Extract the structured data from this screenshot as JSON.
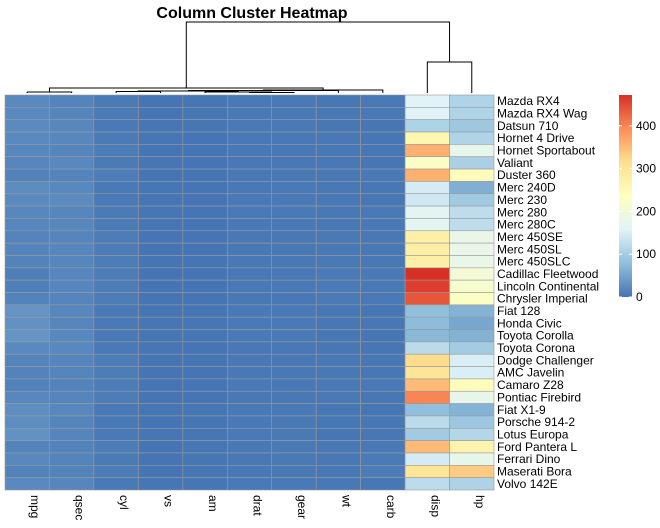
{
  "chart_data": {
    "type": "heatmap",
    "title": "Column Cluster Heatmap",
    "columns": [
      "mpg",
      "qsec",
      "cyl",
      "vs",
      "am",
      "drat",
      "gear",
      "wt",
      "carb",
      "disp",
      "hp"
    ],
    "rows": [
      "Mazda RX4",
      "Mazda RX4 Wag",
      "Datsun 710",
      "Hornet 4 Drive",
      "Hornet Sportabout",
      "Valiant",
      "Duster 360",
      "Merc 240D",
      "Merc 230",
      "Merc 280",
      "Merc 280C",
      "Merc 450SE",
      "Merc 450SL",
      "Merc 450SLC",
      "Cadillac Fleetwood",
      "Lincoln Continental",
      "Chrysler Imperial",
      "Fiat 128",
      "Honda Civic",
      "Toyota Corolla",
      "Toyota Corona",
      "Dodge Challenger",
      "AMC Javelin",
      "Camaro Z28",
      "Pontiac Firebird",
      "Fiat X1-9",
      "Porsche 914-2",
      "Lotus Europa",
      "Ford Pantera L",
      "Ferrari Dino",
      "Maserati Bora",
      "Volvo 142E"
    ],
    "values": [
      [
        21.0,
        16.46,
        6,
        0,
        1,
        3.9,
        4,
        2.62,
        4,
        160.0,
        110
      ],
      [
        21.0,
        17.02,
        6,
        0,
        1,
        3.9,
        4,
        2.875,
        4,
        160.0,
        110
      ],
      [
        22.8,
        18.61,
        4,
        1,
        1,
        3.85,
        4,
        2.32,
        1,
        108.0,
        93
      ],
      [
        21.4,
        19.44,
        6,
        1,
        0,
        3.08,
        3,
        3.215,
        1,
        258.0,
        110
      ],
      [
        18.7,
        17.02,
        8,
        0,
        0,
        3.15,
        3,
        3.44,
        2,
        360.0,
        175
      ],
      [
        18.1,
        20.22,
        6,
        1,
        0,
        2.76,
        3,
        3.46,
        1,
        225.0,
        105
      ],
      [
        14.3,
        15.84,
        8,
        0,
        0,
        3.21,
        3,
        3.57,
        4,
        360.0,
        245
      ],
      [
        24.4,
        20.0,
        4,
        1,
        0,
        3.69,
        4,
        3.19,
        2,
        146.7,
        62
      ],
      [
        22.8,
        22.9,
        4,
        1,
        0,
        3.92,
        4,
        3.15,
        2,
        140.8,
        95
      ],
      [
        19.2,
        18.3,
        6,
        1,
        0,
        3.92,
        4,
        3.44,
        4,
        167.6,
        123
      ],
      [
        17.8,
        18.9,
        6,
        1,
        0,
        3.92,
        4,
        3.44,
        4,
        167.6,
        123
      ],
      [
        16.4,
        17.4,
        8,
        0,
        0,
        3.07,
        3,
        4.07,
        3,
        275.8,
        180
      ],
      [
        17.3,
        17.6,
        8,
        0,
        0,
        3.07,
        3,
        3.73,
        3,
        275.8,
        180
      ],
      [
        15.2,
        18.0,
        8,
        0,
        0,
        3.07,
        3,
        3.78,
        3,
        275.8,
        180
      ],
      [
        10.4,
        17.98,
        8,
        0,
        0,
        2.93,
        3,
        5.25,
        4,
        472.0,
        205
      ],
      [
        10.4,
        17.82,
        8,
        0,
        0,
        3.0,
        3,
        5.424,
        4,
        460.0,
        215
      ],
      [
        14.7,
        17.42,
        8,
        0,
        0,
        3.23,
        3,
        5.345,
        4,
        440.0,
        230
      ],
      [
        32.4,
        19.47,
        4,
        1,
        1,
        4.08,
        4,
        2.2,
        1,
        78.7,
        66
      ],
      [
        30.4,
        18.52,
        4,
        1,
        1,
        4.93,
        4,
        1.615,
        2,
        75.7,
        52
      ],
      [
        33.9,
        19.9,
        4,
        1,
        1,
        4.22,
        4,
        1.835,
        1,
        71.1,
        65
      ],
      [
        21.5,
        20.01,
        4,
        1,
        0,
        3.7,
        3,
        2.465,
        1,
        120.1,
        97
      ],
      [
        15.5,
        16.87,
        8,
        0,
        0,
        2.76,
        3,
        3.52,
        2,
        318.0,
        150
      ],
      [
        15.2,
        17.3,
        8,
        0,
        0,
        3.15,
        3,
        3.435,
        2,
        304.0,
        150
      ],
      [
        13.3,
        15.41,
        8,
        0,
        0,
        3.73,
        3,
        3.84,
        4,
        350.0,
        245
      ],
      [
        19.2,
        17.05,
        8,
        0,
        0,
        3.08,
        3,
        3.845,
        2,
        400.0,
        175
      ],
      [
        27.3,
        18.9,
        4,
        1,
        1,
        4.08,
        4,
        1.935,
        1,
        79.0,
        66
      ],
      [
        26.0,
        16.7,
        4,
        0,
        1,
        4.43,
        5,
        2.14,
        2,
        120.3,
        91
      ],
      [
        30.4,
        16.9,
        4,
        1,
        1,
        3.77,
        5,
        1.513,
        2,
        95.1,
        113
      ],
      [
        15.8,
        14.5,
        8,
        0,
        1,
        4.22,
        5,
        3.17,
        4,
        351.0,
        264
      ],
      [
        19.7,
        15.5,
        6,
        0,
        1,
        3.62,
        5,
        2.77,
        6,
        145.0,
        175
      ],
      [
        15.0,
        14.6,
        8,
        0,
        1,
        3.54,
        5,
        3.57,
        8,
        301.0,
        335
      ],
      [
        21.4,
        18.6,
        4,
        1,
        1,
        4.11,
        4,
        2.78,
        2,
        121.0,
        109
      ]
    ],
    "color_scale": {
      "min": 0,
      "max": 472,
      "colors": [
        "#4575b4",
        "#91bfdb",
        "#e0f3f8",
        "#ffffbf",
        "#fee090",
        "#fc8d59",
        "#d73027"
      ]
    },
    "legend_ticks": [
      0,
      100,
      200,
      300,
      400
    ],
    "legend_position": "right",
    "dendrogram": "columns"
  }
}
